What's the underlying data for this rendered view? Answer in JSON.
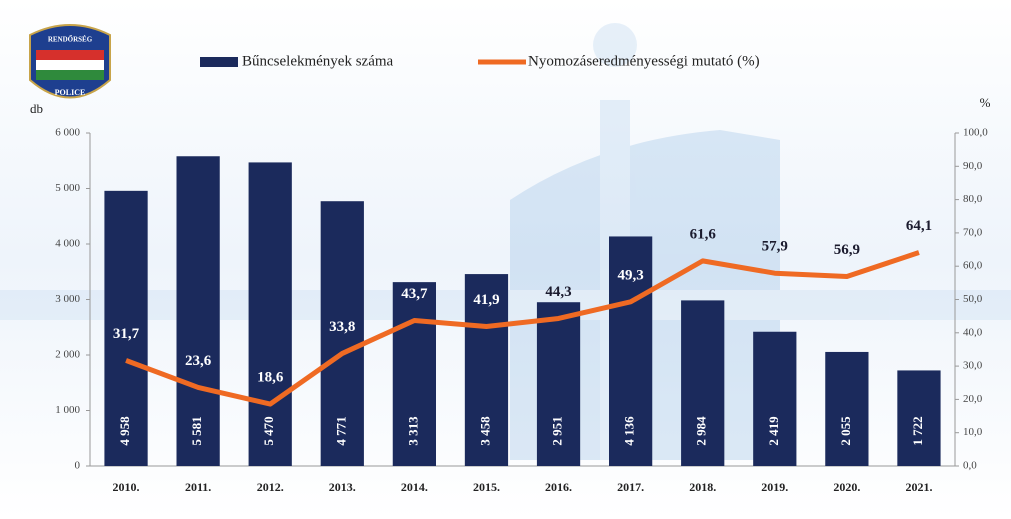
{
  "logo": {
    "top": "RENDŐRSÉG",
    "bottom": "POLICE"
  },
  "chart_data": {
    "type": "bar",
    "categories": [
      "2010.",
      "2011.",
      "2012.",
      "2013.",
      "2014.",
      "2015.",
      "2016.",
      "2017.",
      "2018.",
      "2019.",
      "2020.",
      "2021."
    ],
    "y_label": "db",
    "y2_label": "%",
    "series": [
      {
        "name": "Bűncselekmények száma",
        "type": "bar",
        "color": "#1b2a5c",
        "values": [
          4958,
          5581,
          5470,
          4771,
          3313,
          3458,
          2951,
          4136,
          2984,
          2419,
          2055,
          1722
        ],
        "value_labels": [
          "4 958",
          "5 581",
          "5 470",
          "4 771",
          "3 313",
          "3 458",
          "2 951",
          "4 136",
          "2 984",
          "2 419",
          "2 055",
          "1 722"
        ]
      },
      {
        "name": "Nyomozáseredményességi mutató (%)",
        "type": "line",
        "axis": "y2",
        "color": "#ef6a23",
        "values": [
          31.7,
          23.6,
          18.6,
          33.8,
          43.7,
          41.9,
          44.3,
          49.3,
          61.6,
          57.9,
          56.9,
          64.1
        ],
        "value_labels": [
          "31,7",
          "23,6",
          "18,6",
          "33,8",
          "43,7",
          "41,9",
          "44,3",
          "49,3",
          "61,6",
          "57,9",
          "56,9",
          "64,1"
        ]
      }
    ],
    "ylim": [
      0,
      6000
    ],
    "yticks": [
      0,
      {
        "value": 1000,
        "label": "1 000"
      },
      {
        "value": 2000,
        "label": "2 000"
      },
      {
        "value": 3000,
        "label": "3 000"
      },
      {
        "value": 4000,
        "label": "4 000"
      },
      {
        "value": 5000,
        "label": "5 000"
      },
      {
        "value": 6000,
        "label": "6 000"
      }
    ],
    "y2lim": [
      0,
      100
    ],
    "y2ticks": [
      {
        "value": 0,
        "label": "0,0"
      },
      {
        "value": 10,
        "label": "10,0"
      },
      {
        "value": 20,
        "label": "20,0"
      },
      {
        "value": 30,
        "label": "30,0"
      },
      {
        "value": 40,
        "label": "40,0"
      },
      {
        "value": 50,
        "label": "50,0"
      },
      {
        "value": 60,
        "label": "60,0"
      },
      {
        "value": 70,
        "label": "70,0"
      },
      {
        "value": 80,
        "label": "80,0"
      },
      {
        "value": 90,
        "label": "90,0"
      },
      {
        "value": 100,
        "label": "100,0"
      }
    ]
  }
}
